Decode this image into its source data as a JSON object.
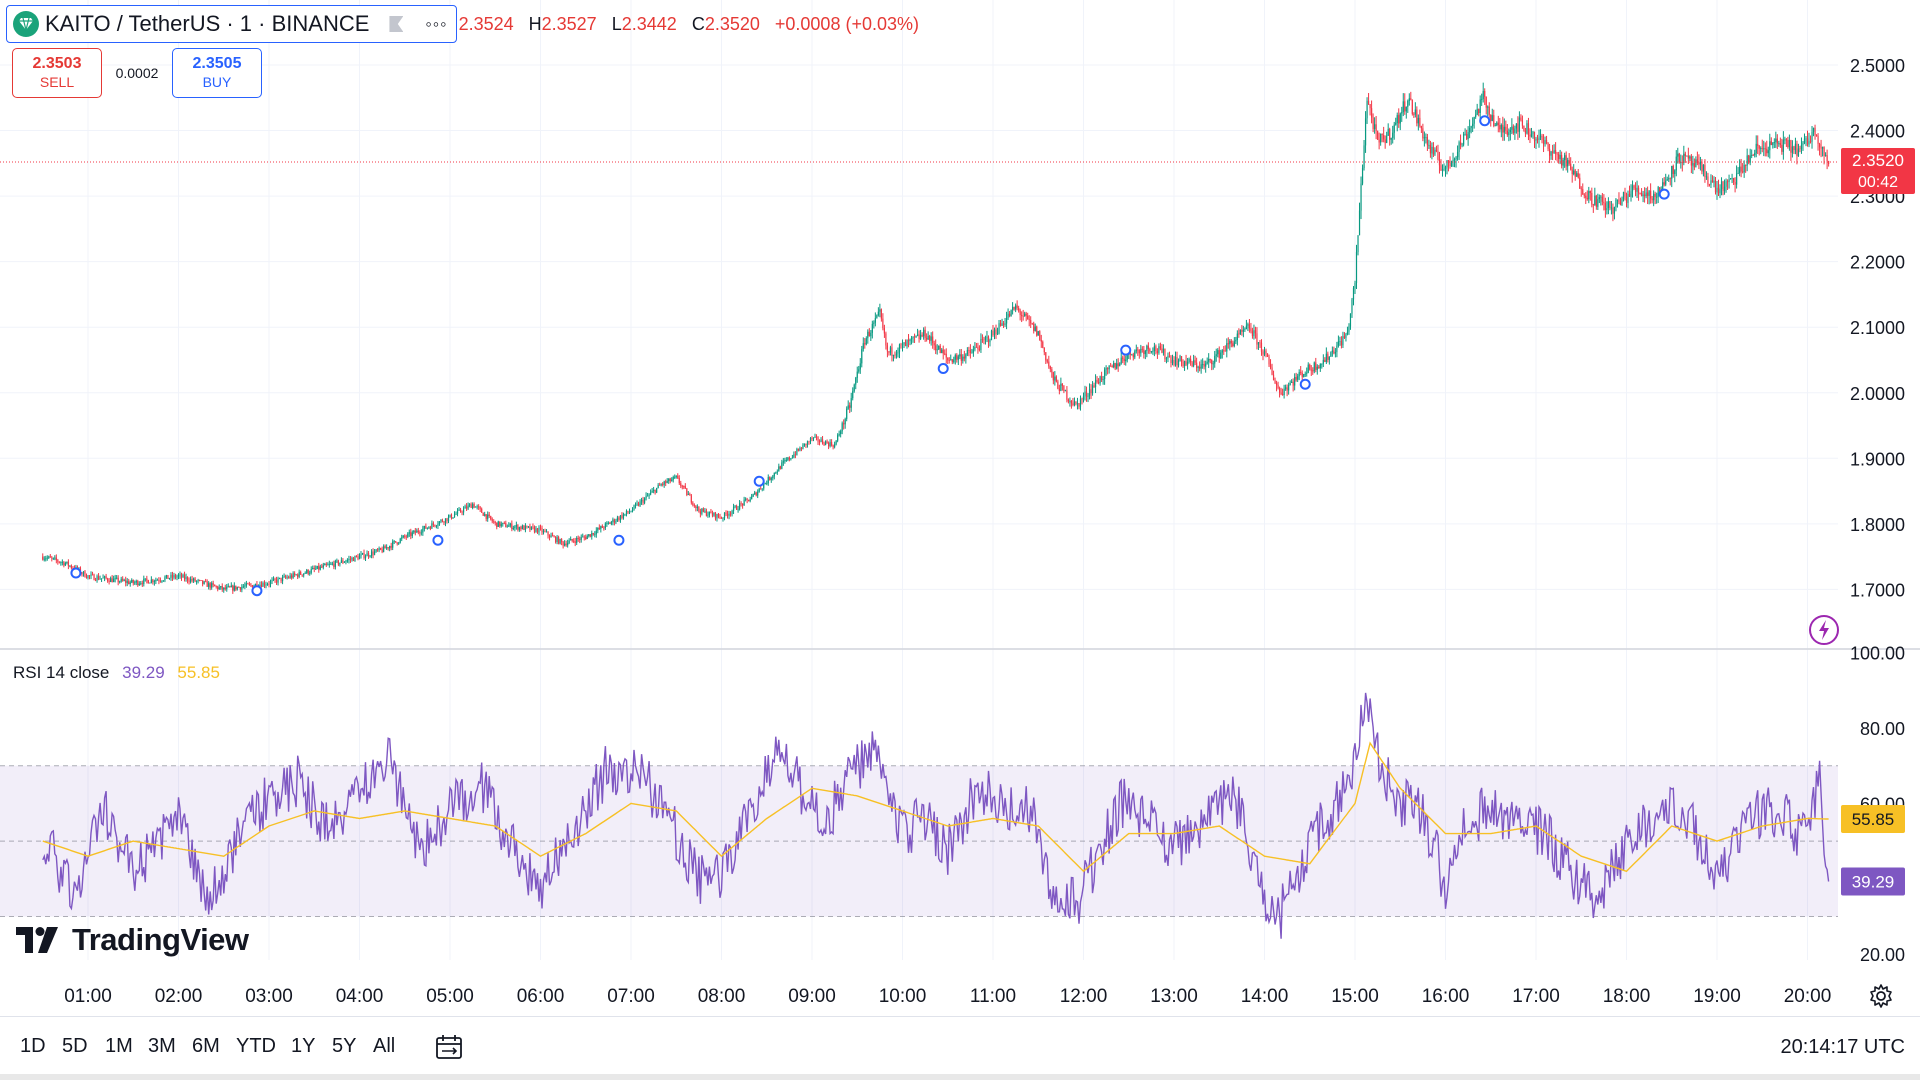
{
  "header": {
    "symbol_title": "KAITO / TetherUS · 1 · BINANCE",
    "more_icon": "more-horizontal-icon",
    "ohlc": {
      "o_val": "2.3524",
      "h_key": "H",
      "h_val": "2.3527",
      "l_key": "L",
      "l_val": "2.3442",
      "c_key": "C",
      "c_val": "2.3520",
      "change": "+0.0008 (+0.03%)"
    }
  },
  "trade": {
    "sell_price": "2.3503",
    "sell_label": "SELL",
    "spread": "0.0002",
    "buy_price": "2.3505",
    "buy_label": "BUY"
  },
  "rsi_legend": {
    "label": "RSI 14 close",
    "rsi": "39.29",
    "ma": "55.85"
  },
  "branding": {
    "logo_text": "TradingView"
  },
  "bottom_bar": {
    "timeframes": [
      "1D",
      "5D",
      "1M",
      "3M",
      "6M",
      "YTD",
      "1Y",
      "5Y",
      "All"
    ],
    "active": "1D",
    "clock": "20:14:17 UTC"
  },
  "colors": {
    "up": "#089981",
    "down": "#f23645",
    "rsi_line": "#7e57c2",
    "rsi_ma": "#f7c025",
    "last_price_bg": "#f23645",
    "brand_blue": "#2962ff"
  },
  "chart_data": [
    {
      "type": "candlestick",
      "title": "KAITO / TetherUS · 1 · BINANCE",
      "y_ticks": [
        "2.5000",
        "2.4000",
        "2.3000",
        "2.2000",
        "2.1000",
        "2.0000",
        "1.9000",
        "1.8000",
        "1.7000"
      ],
      "x_ticks": [
        "01:00",
        "02:00",
        "03:00",
        "04:00",
        "05:00",
        "06:00",
        "07:00",
        "08:00",
        "09:00",
        "10:00",
        "11:00",
        "12:00",
        "13:00",
        "14:00",
        "15:00",
        "16:00",
        "17:00",
        "18:00",
        "19:00",
        "20:00"
      ],
      "ylim": [
        1.63,
        2.52
      ],
      "time_range": [
        "00:30",
        "20:14"
      ],
      "last_price": {
        "value": "2.3520",
        "countdown": "00:42"
      },
      "price_path": [
        [
          "00:30",
          1.75
        ],
        [
          "00:45",
          1.74
        ],
        [
          "01:00",
          1.72
        ],
        [
          "01:30",
          1.71
        ],
        [
          "02:00",
          1.72
        ],
        [
          "02:30",
          1.7
        ],
        [
          "03:00",
          1.71
        ],
        [
          "03:30",
          1.73
        ],
        [
          "04:00",
          1.75
        ],
        [
          "04:15",
          1.76
        ],
        [
          "04:30",
          1.78
        ],
        [
          "05:00",
          1.81
        ],
        [
          "05:15",
          1.83
        ],
        [
          "05:30",
          1.8
        ],
        [
          "06:00",
          1.79
        ],
        [
          "06:15",
          1.77
        ],
        [
          "06:30",
          1.78
        ],
        [
          "07:00",
          1.82
        ],
        [
          "07:20",
          1.86
        ],
        [
          "07:30",
          1.87
        ],
        [
          "07:45",
          1.82
        ],
        [
          "08:00",
          1.81
        ],
        [
          "08:20",
          1.84
        ],
        [
          "08:40",
          1.89
        ],
        [
          "09:00",
          1.93
        ],
        [
          "09:15",
          1.92
        ],
        [
          "09:25",
          1.98
        ],
        [
          "09:35",
          2.08
        ],
        [
          "09:45",
          2.12
        ],
        [
          "09:50",
          2.06
        ],
        [
          "10:00",
          2.07
        ],
        [
          "10:15",
          2.09
        ],
        [
          "10:30",
          2.05
        ],
        [
          "10:45",
          2.06
        ],
        [
          "11:00",
          2.09
        ],
        [
          "11:15",
          2.13
        ],
        [
          "11:30",
          2.09
        ],
        [
          "11:40",
          2.02
        ],
        [
          "11:55",
          1.98
        ],
        [
          "12:10",
          2.02
        ],
        [
          "12:30",
          2.06
        ],
        [
          "12:45",
          2.07
        ],
        [
          "13:00",
          2.05
        ],
        [
          "13:20",
          2.04
        ],
        [
          "13:40",
          2.08
        ],
        [
          "13:50",
          2.1
        ],
        [
          "14:00",
          2.06
        ],
        [
          "14:10",
          2.0
        ],
        [
          "14:25",
          2.03
        ],
        [
          "14:40",
          2.05
        ],
        [
          "14:55",
          2.09
        ],
        [
          "15:00",
          2.17
        ],
        [
          "15:05",
          2.35
        ],
        [
          "15:08",
          2.45
        ],
        [
          "15:15",
          2.38
        ],
        [
          "15:25",
          2.4
        ],
        [
          "15:35",
          2.45
        ],
        [
          "15:50",
          2.37
        ],
        [
          "16:00",
          2.34
        ],
        [
          "16:15",
          2.4
        ],
        [
          "16:25",
          2.45
        ],
        [
          "16:35",
          2.4
        ],
        [
          "16:50",
          2.41
        ],
        [
          "17:05",
          2.38
        ],
        [
          "17:20",
          2.35
        ],
        [
          "17:35",
          2.3
        ],
        [
          "17:50",
          2.28
        ],
        [
          "18:05",
          2.31
        ],
        [
          "18:20",
          2.3
        ],
        [
          "18:35",
          2.36
        ],
        [
          "18:50",
          2.34
        ],
        [
          "19:00",
          2.31
        ],
        [
          "19:10",
          2.32
        ],
        [
          "19:25",
          2.37
        ],
        [
          "19:40",
          2.38
        ],
        [
          "19:55",
          2.37
        ],
        [
          "20:05",
          2.4
        ],
        [
          "20:14",
          2.35
        ]
      ],
      "markers": [
        [
          "00:52",
          1.725
        ],
        [
          "02:52",
          1.698
        ],
        [
          "04:52",
          1.775
        ],
        [
          "06:52",
          1.775
        ],
        [
          "08:25",
          1.865
        ],
        [
          "10:27",
          2.037
        ],
        [
          "12:28",
          2.065
        ],
        [
          "14:27",
          2.013
        ],
        [
          "16:26",
          2.415
        ],
        [
          "18:25",
          2.303
        ]
      ]
    },
    {
      "type": "line",
      "title": "RSI 14 close",
      "y_ticks": [
        "100.00",
        "80.00",
        "60.00",
        "20.00"
      ],
      "ylim": [
        15,
        100
      ],
      "bands": [
        30,
        50,
        70
      ],
      "series": [
        {
          "name": "RSI",
          "last": "39.29",
          "path": [
            [
              "00:30",
              52
            ],
            [
              "00:50",
              36
            ],
            [
              "01:10",
              58
            ],
            [
              "01:30",
              42
            ],
            [
              "02:00",
              55
            ],
            [
              "02:20",
              35
            ],
            [
              "02:50",
              58
            ],
            [
              "03:20",
              66
            ],
            [
              "03:40",
              52
            ],
            [
              "04:00",
              62
            ],
            [
              "04:20",
              72
            ],
            [
              "04:40",
              46
            ],
            [
              "05:00",
              58
            ],
            [
              "05:20",
              66
            ],
            [
              "05:45",
              45
            ],
            [
              "06:00",
              38
            ],
            [
              "06:20",
              50
            ],
            [
              "06:45",
              70
            ],
            [
              "07:10",
              66
            ],
            [
              "07:30",
              52
            ],
            [
              "07:45",
              40
            ],
            [
              "08:00",
              42
            ],
            [
              "08:20",
              58
            ],
            [
              "08:40",
              76
            ],
            [
              "08:55",
              62
            ],
            [
              "09:10",
              55
            ],
            [
              "09:25",
              68
            ],
            [
              "09:40",
              74
            ],
            [
              "10:00",
              52
            ],
            [
              "10:15",
              56
            ],
            [
              "10:30",
              48
            ],
            [
              "10:50",
              64
            ],
            [
              "11:10",
              60
            ],
            [
              "11:25",
              58
            ],
            [
              "11:40",
              36
            ],
            [
              "11:55",
              33
            ],
            [
              "12:10",
              46
            ],
            [
              "12:25",
              60
            ],
            [
              "12:45",
              56
            ],
            [
              "13:00",
              48
            ],
            [
              "13:20",
              54
            ],
            [
              "13:40",
              62
            ],
            [
              "14:00",
              35
            ],
            [
              "14:10",
              30
            ],
            [
              "14:30",
              50
            ],
            [
              "14:50",
              60
            ],
            [
              "15:00",
              72
            ],
            [
              "15:06",
              88
            ],
            [
              "15:15",
              72
            ],
            [
              "15:30",
              60
            ],
            [
              "15:45",
              58
            ],
            [
              "16:00",
              38
            ],
            [
              "16:15",
              56
            ],
            [
              "16:30",
              58
            ],
            [
              "16:50",
              54
            ],
            [
              "17:05",
              52
            ],
            [
              "17:20",
              44
            ],
            [
              "17:40",
              33
            ],
            [
              "18:00",
              50
            ],
            [
              "18:15",
              56
            ],
            [
              "18:30",
              62
            ],
            [
              "18:45",
              54
            ],
            [
              "19:00",
              38
            ],
            [
              "19:15",
              52
            ],
            [
              "19:30",
              58
            ],
            [
              "19:45",
              56
            ],
            [
              "20:00",
              50
            ],
            [
              "20:08",
              66
            ],
            [
              "20:14",
              39.29
            ]
          ]
        },
        {
          "name": "RSI-based MA",
          "last": "55.85",
          "path": [
            [
              "00:30",
              50
            ],
            [
              "01:00",
              46
            ],
            [
              "01:30",
              50
            ],
            [
              "02:00",
              48
            ],
            [
              "02:30",
              46
            ],
            [
              "03:00",
              54
            ],
            [
              "03:30",
              58
            ],
            [
              "04:00",
              56
            ],
            [
              "04:30",
              58
            ],
            [
              "05:00",
              56
            ],
            [
              "05:30",
              54
            ],
            [
              "06:00",
              46
            ],
            [
              "06:30",
              52
            ],
            [
              "07:00",
              60
            ],
            [
              "07:30",
              58
            ],
            [
              "08:00",
              46
            ],
            [
              "08:30",
              56
            ],
            [
              "09:00",
              64
            ],
            [
              "09:30",
              62
            ],
            [
              "10:00",
              58
            ],
            [
              "10:30",
              54
            ],
            [
              "11:00",
              56
            ],
            [
              "11:30",
              54
            ],
            [
              "12:00",
              42
            ],
            [
              "12:30",
              52
            ],
            [
              "13:00",
              52
            ],
            [
              "13:30",
              54
            ],
            [
              "14:00",
              46
            ],
            [
              "14:30",
              44
            ],
            [
              "15:00",
              60
            ],
            [
              "15:10",
              76
            ],
            [
              "15:30",
              64
            ],
            [
              "16:00",
              52
            ],
            [
              "16:30",
              52
            ],
            [
              "17:00",
              54
            ],
            [
              "17:30",
              46
            ],
            [
              "18:00",
              42
            ],
            [
              "18:30",
              54
            ],
            [
              "19:00",
              50
            ],
            [
              "19:30",
              54
            ],
            [
              "20:00",
              56
            ],
            [
              "20:14",
              55.85
            ]
          ]
        }
      ]
    }
  ]
}
